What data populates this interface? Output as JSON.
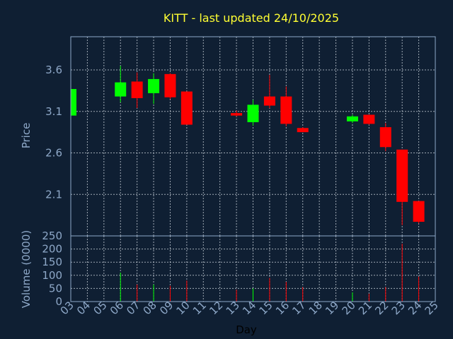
{
  "chart_data": [
    {
      "type": "candlestick",
      "title": "KITT - last updated 24/10/2025",
      "ylabel": "Price",
      "ylim": [
        1.6,
        4.0
      ],
      "yticks": [
        "2.1",
        "2.6",
        "3.1",
        "3.6"
      ],
      "grid": true,
      "colors": {
        "up": "#00ff00",
        "down": "#ff0000"
      },
      "candles": [
        {
          "day": "03",
          "open": 3.05,
          "high": 3.38,
          "low": 3.05,
          "close": 3.37
        },
        {
          "day": "06",
          "open": 3.28,
          "high": 3.65,
          "low": 3.21,
          "close": 3.45
        },
        {
          "day": "07",
          "open": 3.46,
          "high": 3.57,
          "low": 3.14,
          "close": 3.26
        },
        {
          "day": "08",
          "open": 3.32,
          "high": 3.56,
          "low": 3.19,
          "close": 3.49
        },
        {
          "day": "09",
          "open": 3.55,
          "high": 3.56,
          "low": 3.25,
          "close": 3.27
        },
        {
          "day": "10",
          "open": 3.34,
          "high": 3.34,
          "low": 2.94,
          "close": 2.94
        },
        {
          "day": "13",
          "open": 3.08,
          "high": 3.11,
          "low": 3.04,
          "close": 3.05
        },
        {
          "day": "14",
          "open": 2.97,
          "high": 3.24,
          "low": 2.93,
          "close": 3.18
        },
        {
          "day": "15",
          "open": 3.28,
          "high": 3.54,
          "low": 3.14,
          "close": 3.17
        },
        {
          "day": "16",
          "open": 3.28,
          "high": 3.4,
          "low": 2.92,
          "close": 2.95
        },
        {
          "day": "17",
          "open": 2.9,
          "high": 2.91,
          "low": 2.85,
          "close": 2.85
        },
        {
          "day": "20",
          "open": 2.98,
          "high": 3.06,
          "low": 2.96,
          "close": 3.04
        },
        {
          "day": "21",
          "open": 3.06,
          "high": 3.06,
          "low": 2.94,
          "close": 2.95
        },
        {
          "day": "22",
          "open": 2.91,
          "high": 2.96,
          "low": 2.62,
          "close": 2.67
        },
        {
          "day": "23",
          "open": 2.64,
          "high": 2.64,
          "low": 1.73,
          "close": 2.01
        },
        {
          "day": "24",
          "open": 2.02,
          "high": 2.02,
          "low": 1.75,
          "close": 1.77
        }
      ]
    },
    {
      "type": "bar",
      "ylabel": "Volume (0000)",
      "xlabel": "Day",
      "ylim": [
        0,
        250
      ],
      "yticks": [
        "0",
        "50",
        "100",
        "150",
        "200",
        "250"
      ],
      "grid": true,
      "categories": [
        "03",
        "04",
        "05",
        "06",
        "07",
        "08",
        "09",
        "10",
        "11",
        "12",
        "13",
        "14",
        "15",
        "16",
        "17",
        "18",
        "19",
        "20",
        "21",
        "22",
        "23",
        "24",
        "25"
      ],
      "volumes": [
        {
          "day": "06",
          "value": 110,
          "direction": "up"
        },
        {
          "day": "07",
          "value": 65,
          "direction": "down"
        },
        {
          "day": "08",
          "value": 65,
          "direction": "up"
        },
        {
          "day": "09",
          "value": 60,
          "direction": "down"
        },
        {
          "day": "10",
          "value": 80,
          "direction": "down"
        },
        {
          "day": "13",
          "value": 45,
          "direction": "down"
        },
        {
          "day": "14",
          "value": 50,
          "direction": "up"
        },
        {
          "day": "15",
          "value": 90,
          "direction": "down"
        },
        {
          "day": "16",
          "value": 75,
          "direction": "down"
        },
        {
          "day": "17",
          "value": 55,
          "direction": "down"
        },
        {
          "day": "20",
          "value": 35,
          "direction": "up"
        },
        {
          "day": "21",
          "value": 30,
          "direction": "down"
        },
        {
          "day": "22",
          "value": 55,
          "direction": "down"
        },
        {
          "day": "23",
          "value": 220,
          "direction": "down"
        },
        {
          "day": "24",
          "value": 95,
          "direction": "down"
        }
      ]
    }
  ]
}
